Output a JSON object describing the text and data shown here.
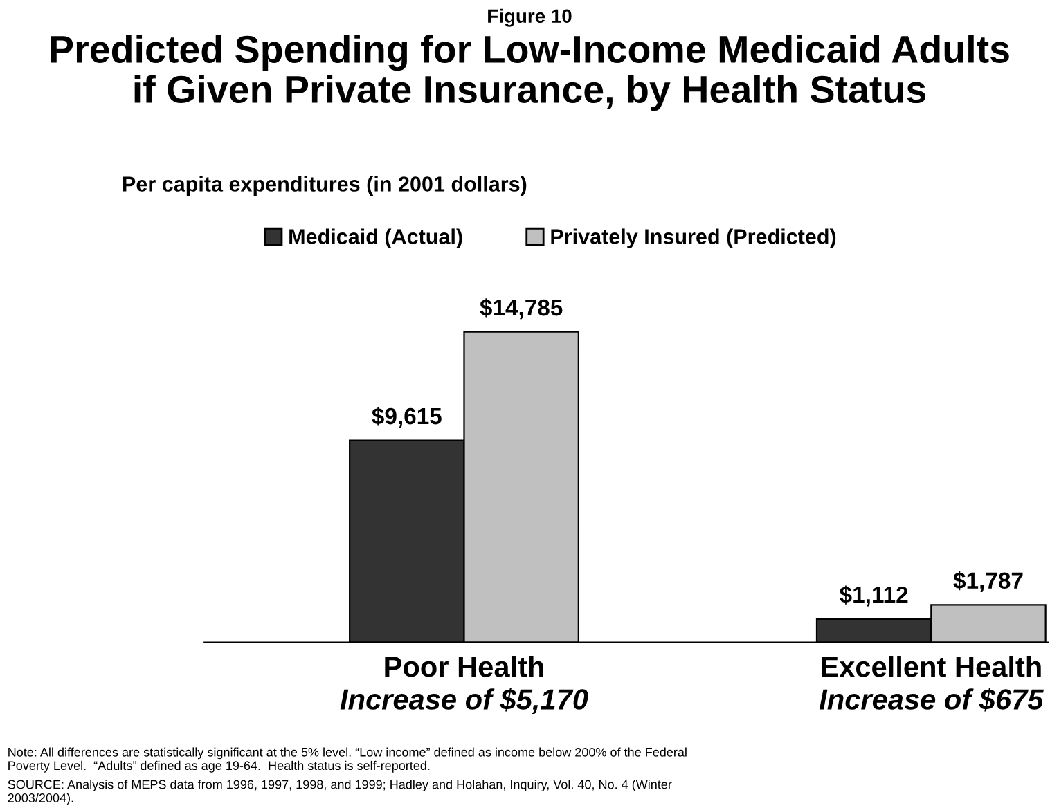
{
  "chart_data": {
    "type": "bar",
    "title": "Predicted Spending for Low-Income Medicaid Adults\nif Given Private Insurance, by Health Status",
    "subtitle": "Per capita expenditures (in 2001 dollars)",
    "categories": [
      "Poor Health\nIncrease of $5,170",
      "Excellent Health\nIncrease of $675"
    ],
    "series": [
      {
        "name": "Medicaid (Actual)",
        "color": "#333333",
        "values": [
          9615,
          1112
        ],
        "value_labels": [
          "$9,615",
          "$1,112"
        ]
      },
      {
        "name": "Privately Insured (Predicted)",
        "color": "#c0c0c0",
        "values": [
          14785,
          1787
        ],
        "value_labels": [
          "$14,785",
          "$1,787"
        ]
      }
    ],
    "legend": "top",
    "grid": false,
    "annotations": [
      "Figure 10",
      "Note: All differences are statistically significant at the 5% level. “Low income” defined as income below 200% of the Federal Poverty Level.  “Adults” defined as age 19-64.  Health status is self-reported.",
      "SOURCE: Analysis of MEPS data from 1996, 1997, 1998, and 1999; Hadley and Holahan, Inquiry, Vol. 40, No. 4 (Winter 2003/2004)."
    ]
  }
}
